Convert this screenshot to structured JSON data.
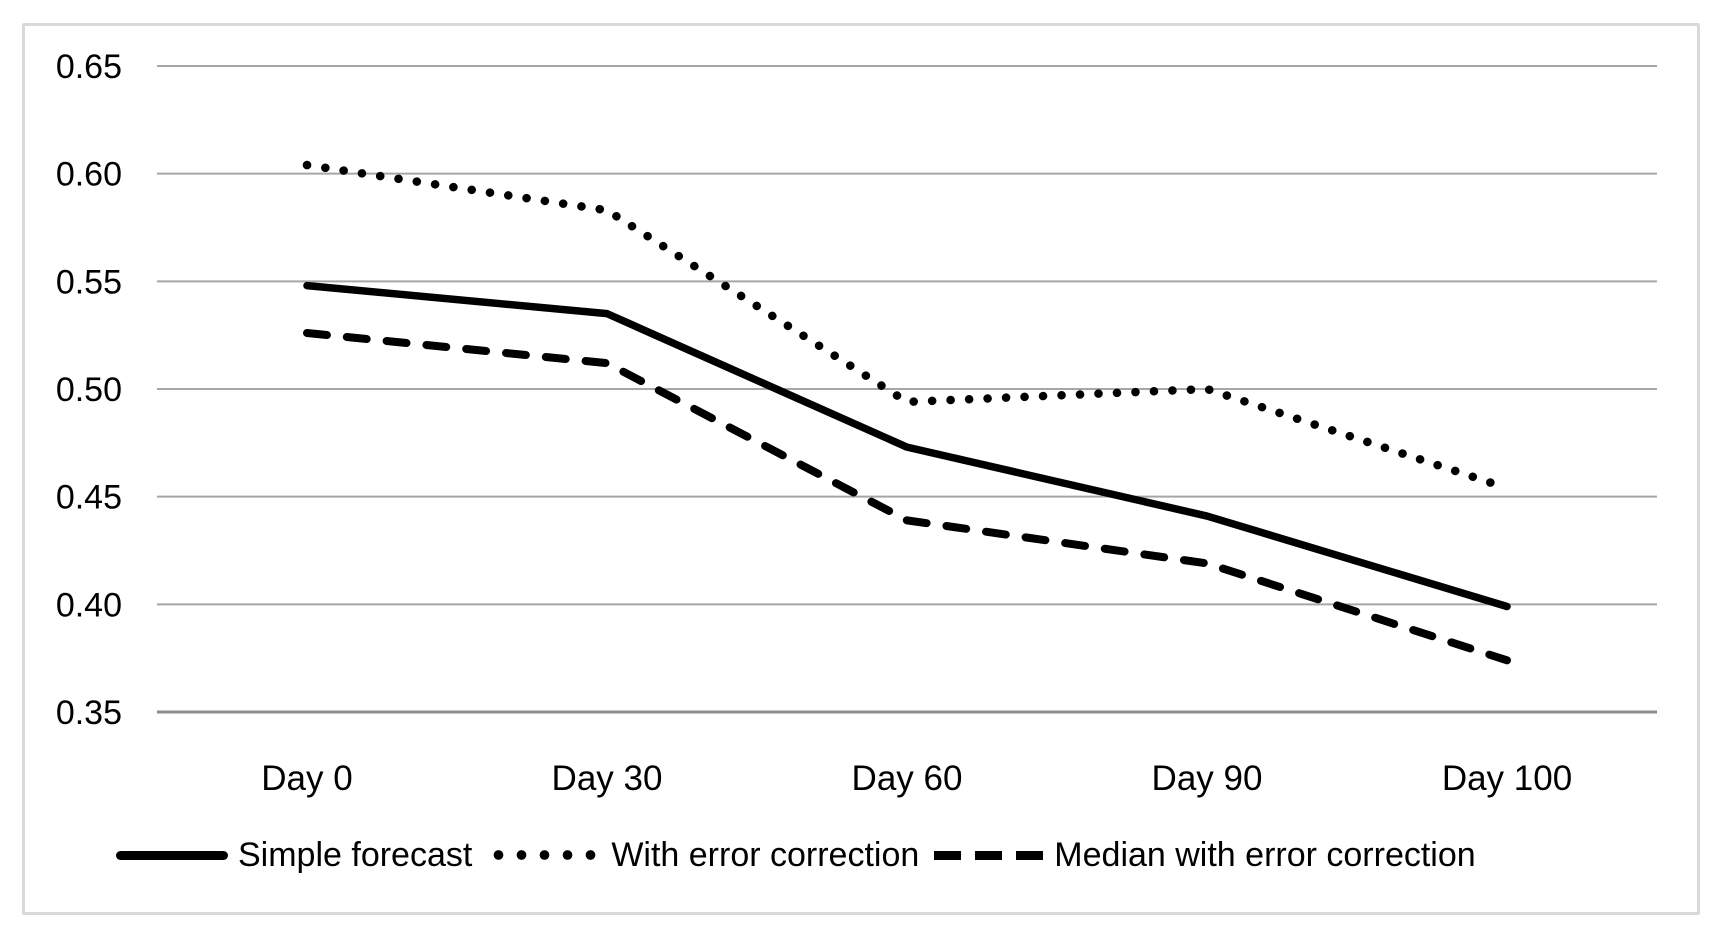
{
  "chart_data": {
    "type": "line",
    "title": "",
    "xlabel": "",
    "ylabel": "",
    "categories": [
      "Day 0",
      "Day 30",
      "Day 60",
      "Day 90",
      "Day 100"
    ],
    "series": [
      {
        "name": "Simple forecast",
        "style": "solid",
        "values": [
          0.548,
          0.535,
          0.473,
          0.441,
          0.399
        ]
      },
      {
        "name": "With error correction",
        "style": "dotted",
        "values": [
          0.604,
          0.583,
          0.494,
          0.5,
          0.454
        ]
      },
      {
        "name": "Median with error correction",
        "style": "dashed",
        "values": [
          0.526,
          0.512,
          0.439,
          0.419,
          0.374
        ]
      }
    ],
    "ylim": [
      0.35,
      0.65
    ],
    "yticks": [
      0.65,
      0.6,
      0.55,
      0.5,
      0.45,
      0.4,
      0.35
    ],
    "ytick_labels": [
      "0.65",
      "0.60",
      "0.55",
      "0.50",
      "0.45",
      "0.40",
      "0.35"
    ],
    "grid": true,
    "legend_position": "bottom",
    "colors": {
      "series_line": "#000000",
      "gridline": "#A6A6A6",
      "axis_line": "#8C8C8C",
      "frame_border": "#D9D9D9",
      "background": "#FFFFFF",
      "text": "#000000"
    }
  }
}
